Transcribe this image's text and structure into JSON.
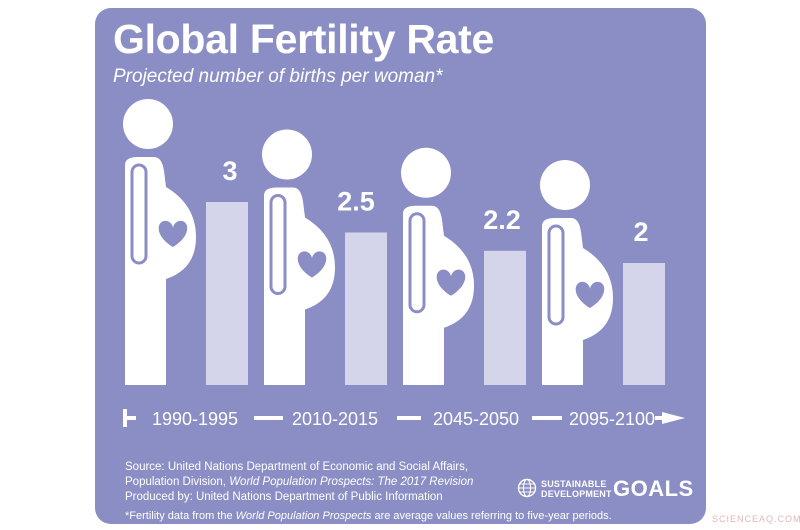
{
  "title": "Global Fertility Rate",
  "subtitle": "Projected number of births per woman*",
  "chart_data": {
    "type": "bar",
    "title": "Global Fertility Rate",
    "subtitle": "Projected number of births per woman*",
    "categories": [
      "1990-1995",
      "2010-2015",
      "2045-2050",
      "2095-2100"
    ],
    "values": [
      3,
      2.5,
      2.2,
      2
    ],
    "value_labels": [
      "3",
      "2.5",
      "2.2",
      "2"
    ],
    "ylim": [
      0,
      3
    ],
    "grid": false,
    "legend": "none",
    "icon": "pregnant-woman-icon"
  },
  "source": {
    "line1": "Source: United Nations Department of Economic and Social Affairs,",
    "line2_prefix": "Population Division, ",
    "line2_italic": "World Population Prospects: The 2017 Revision",
    "line3": "Produced by: United Nations Department of Public Information"
  },
  "footnote": {
    "prefix": "*Fertility data from the ",
    "italic": "World Population Prospects",
    "suffix": " are average values referring to five-year periods."
  },
  "logo": {
    "line1": "SUSTAINABLE",
    "line2": "DEVELOPMENT",
    "word": "GOALS",
    "emblem": "un-emblem-icon"
  },
  "watermark": "SCIENCEAQ.COM",
  "colors": {
    "background": "#8b8ec4",
    "bar": "#d4d5ea",
    "figure": "#ffffff",
    "heart": "#8b8ec4"
  }
}
